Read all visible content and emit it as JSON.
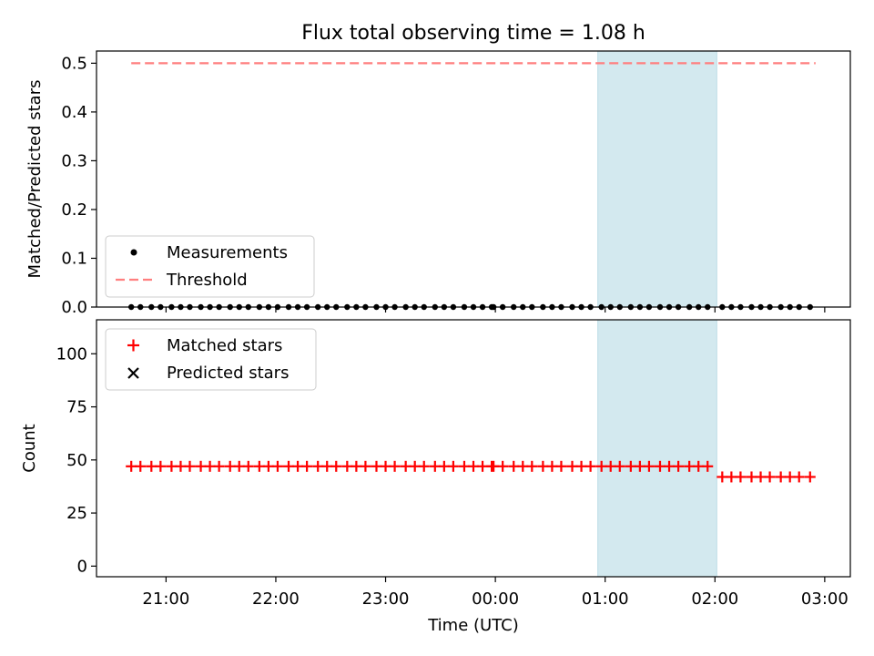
{
  "figure": {
    "title": "Flux total observing time = 1.08 h",
    "xlabel": "Time (UTC)",
    "x_ticks": [
      "21:00",
      "22:00",
      "23:00",
      "00:00",
      "01:00",
      "02:00",
      "03:00"
    ]
  },
  "colors": {
    "matched": "#ff0000",
    "predicted": "#000000",
    "measurement": "#000000",
    "threshold": "#ff7f7f",
    "shade": "#d3e9ef"
  },
  "chart_data": [
    {
      "type": "scatter",
      "title": "Flux total observing time = 1.08 h",
      "ylabel": "Matched/Predicted stars",
      "x_axis": "time (UTC)",
      "xlim": [
        "20:22",
        "03:14"
      ],
      "ylim": [
        0,
        0.525
      ],
      "y_ticks": [
        "0.0",
        "0.1",
        "0.2",
        "0.3",
        "0.4",
        "0.5"
      ],
      "shaded_interval": [
        "00:56",
        "02:01"
      ],
      "legend": {
        "placement": "lower-left",
        "entries": [
          "Measurements",
          "Threshold"
        ]
      },
      "series": [
        {
          "name": "Threshold",
          "kind": "dashed-line",
          "x": [
            "20:41",
            "02:55"
          ],
          "y": [
            0.5,
            0.5
          ]
        },
        {
          "name": "Measurements",
          "kind": "dots",
          "x": [
            "20:41",
            "20:46",
            "20:52",
            "20:57",
            "21:03",
            "21:08",
            "21:13",
            "21:19",
            "21:24",
            "21:29",
            "21:35",
            "21:40",
            "21:45",
            "21:51",
            "21:56",
            "22:01",
            "22:07",
            "22:12",
            "22:17",
            "22:23",
            "22:28",
            "22:33",
            "22:39",
            "22:44",
            "22:49",
            "22:55",
            "23:00",
            "23:05",
            "23:11",
            "23:16",
            "23:21",
            "23:27",
            "23:32",
            "23:37",
            "23:43",
            "23:48",
            "23:53",
            "23:58",
            "23:59",
            "00:04",
            "00:10",
            "00:15",
            "00:20",
            "00:26",
            "00:31",
            "00:36",
            "00:42",
            "00:47",
            "00:52",
            "00:58",
            "01:03",
            "01:08",
            "01:14",
            "01:19",
            "01:24",
            "01:30",
            "01:35",
            "01:40",
            "01:46",
            "01:51",
            "01:56",
            "02:04",
            "02:09",
            "02:14",
            "02:20",
            "02:25",
            "02:30",
            "02:36",
            "02:41",
            "02:46",
            "02:52"
          ],
          "y": [
            0,
            0,
            0,
            0,
            0,
            0,
            0,
            0,
            0,
            0,
            0,
            0,
            0,
            0,
            0,
            0,
            0,
            0,
            0,
            0,
            0,
            0,
            0,
            0,
            0,
            0,
            0,
            0,
            0,
            0,
            0,
            0,
            0,
            0,
            0,
            0,
            0,
            0,
            0,
            0,
            0,
            0,
            0,
            0,
            0,
            0,
            0,
            0,
            0,
            0,
            0,
            0,
            0,
            0,
            0,
            0,
            0,
            0,
            0,
            0,
            0,
            0,
            0,
            0,
            0,
            0,
            0,
            0,
            0,
            0,
            0
          ]
        }
      ]
    },
    {
      "type": "scatter",
      "ylabel": "Count",
      "xlabel": "Time (UTC)",
      "x_axis": "time (UTC)",
      "xlim": [
        "20:22",
        "03:14"
      ],
      "ylim": [
        -5,
        116
      ],
      "y_ticks": [
        "0",
        "25",
        "50",
        "75",
        "100"
      ],
      "x_ticks": [
        "21:00",
        "22:00",
        "23:00",
        "00:00",
        "01:00",
        "02:00",
        "03:00"
      ],
      "shaded_interval": [
        "00:56",
        "02:01"
      ],
      "legend": {
        "placement": "upper-left",
        "entries": [
          "Matched stars",
          "Predicted stars"
        ]
      },
      "series": [
        {
          "name": "Matched stars",
          "marker": "plus",
          "x": [
            "20:41",
            "20:46",
            "20:52",
            "20:57",
            "21:03",
            "21:08",
            "21:13",
            "21:19",
            "21:24",
            "21:29",
            "21:35",
            "21:40",
            "21:45",
            "21:51",
            "21:56",
            "22:01",
            "22:07",
            "22:12",
            "22:17",
            "22:23",
            "22:28",
            "22:33",
            "22:39",
            "22:44",
            "22:49",
            "22:55",
            "23:00",
            "23:05",
            "23:11",
            "23:16",
            "23:21",
            "23:27",
            "23:32",
            "23:37",
            "23:43",
            "23:48",
            "23:53",
            "23:58",
            "23:59",
            "00:04",
            "00:10",
            "00:15",
            "00:20",
            "00:26",
            "00:31",
            "00:36",
            "00:42",
            "00:47",
            "00:52",
            "00:58",
            "01:03",
            "01:08",
            "01:14",
            "01:19",
            "01:24",
            "01:30",
            "01:35",
            "01:40",
            "01:46",
            "01:51",
            "01:56",
            "02:04",
            "02:09",
            "02:14",
            "02:20",
            "02:25",
            "02:30",
            "02:36",
            "02:41",
            "02:46",
            "02:52"
          ],
          "y": [
            47,
            47,
            47,
            47,
            47,
            47,
            47,
            47,
            47,
            47,
            47,
            47,
            47,
            47,
            47,
            47,
            47,
            47,
            47,
            47,
            47,
            47,
            47,
            47,
            47,
            47,
            47,
            47,
            47,
            47,
            47,
            47,
            47,
            47,
            47,
            47,
            47,
            47,
            47,
            47,
            47,
            47,
            47,
            47,
            47,
            47,
            47,
            47,
            47,
            47,
            47,
            47,
            47,
            47,
            47,
            47,
            47,
            47,
            47,
            47,
            47,
            42,
            42,
            42,
            42,
            42,
            42,
            42,
            42,
            42,
            42
          ]
        },
        {
          "name": "Predicted stars",
          "marker": "x",
          "x": [],
          "y": []
        }
      ]
    }
  ]
}
